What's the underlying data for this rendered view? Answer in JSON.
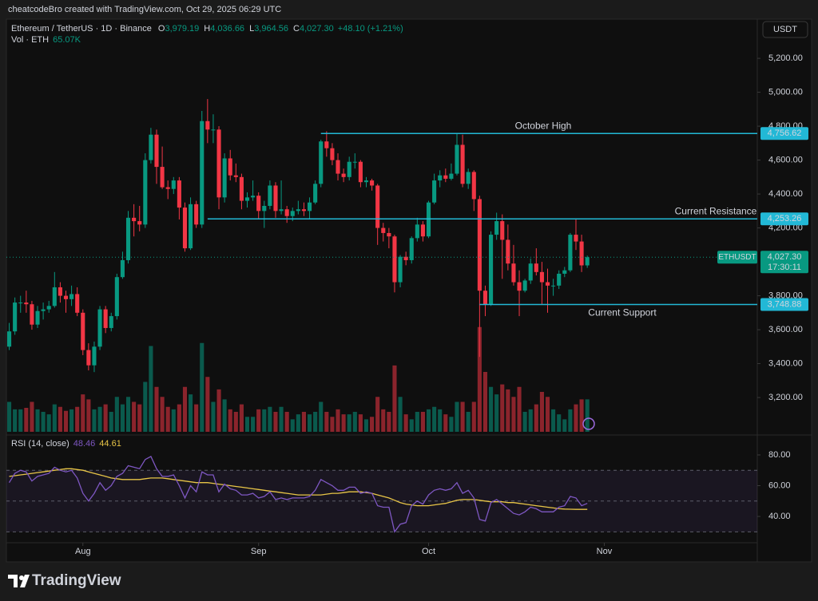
{
  "header": {
    "credit": "cheatcodeBro created with TradingView.com, Oct 29, 2025 06:29 UTC"
  },
  "footer": {
    "brand": "TradingView"
  },
  "chart_data": {
    "type": "candlestick",
    "title": "Ethereum / TetherUS · 1D · Binance",
    "ohlc_names": [
      "O",
      "H",
      "L",
      "C"
    ],
    "ohlc_labels": [
      "3,979.19",
      "4,036.66",
      "3,964.56",
      "4,027.30"
    ],
    "change": "+48.10 (+1.21%)",
    "currency": "USDT",
    "colors": {
      "up": "#089981",
      "down": "#f23645",
      "level": "#22b8d6",
      "rsi": "#7e57c2",
      "rsi_ma": "#e8c547"
    },
    "xlim": [
      -0.5,
      132
    ],
    "xticks": [
      {
        "value": 13,
        "label": "Aug"
      },
      {
        "value": 44,
        "label": "Sep"
      },
      {
        "value": 74,
        "label": "Oct"
      },
      {
        "value": 105,
        "label": "Nov"
      }
    ],
    "ylim": [
      2998,
      5431
    ],
    "yticks": [
      {
        "value": 3200,
        "label": "3,200.00"
      },
      {
        "value": 3400,
        "label": "3,400.00"
      },
      {
        "value": 3600,
        "label": "3,600.00"
      },
      {
        "value": 3800,
        "label": "3,800.00"
      },
      {
        "value": 4200,
        "label": "4,200.00"
      },
      {
        "value": 4400,
        "label": "4,400.00"
      },
      {
        "value": 4600,
        "label": "4,600.00"
      },
      {
        "value": 4800,
        "label": "4,800.00"
      },
      {
        "value": 5000,
        "label": "5,000.00"
      },
      {
        "value": 5200,
        "label": "5,200.00"
      }
    ],
    "candles": [
      [
        3500,
        3640,
        3480,
        3590
      ],
      [
        3590,
        3790,
        3570,
        3760
      ],
      [
        3760,
        3800,
        3700,
        3760
      ],
      [
        3760,
        3830,
        3700,
        3750
      ],
      [
        3750,
        3770,
        3600,
        3630
      ],
      [
        3630,
        3740,
        3610,
        3710
      ],
      [
        3710,
        3760,
        3660,
        3720
      ],
      [
        3720,
        3770,
        3700,
        3740
      ],
      [
        3740,
        3940,
        3730,
        3850
      ],
      [
        3850,
        3880,
        3760,
        3800
      ],
      [
        3800,
        3830,
        3700,
        3780
      ],
      [
        3780,
        3860,
        3740,
        3810
      ],
      [
        3810,
        3850,
        3680,
        3700
      ],
      [
        3700,
        3720,
        3450,
        3480
      ],
      [
        3480,
        3520,
        3360,
        3390
      ],
      [
        3390,
        3530,
        3350,
        3500
      ],
      [
        3500,
        3740,
        3480,
        3720
      ],
      [
        3720,
        3740,
        3580,
        3610
      ],
      [
        3610,
        3700,
        3590,
        3680
      ],
      [
        3680,
        3930,
        3660,
        3910
      ],
      [
        3910,
        4060,
        3900,
        4010
      ],
      [
        4010,
        4300,
        3990,
        4260
      ],
      [
        4260,
        4340,
        4150,
        4240
      ],
      [
        4240,
        4330,
        4180,
        4220
      ],
      [
        4220,
        4640,
        4200,
        4600
      ],
      [
        4600,
        4790,
        4580,
        4750
      ],
      [
        4750,
        4780,
        4460,
        4560
      ],
      [
        4560,
        4680,
        4430,
        4440
      ],
      [
        4440,
        4480,
        4370,
        4430
      ],
      [
        4430,
        4500,
        4400,
        4480
      ],
      [
        4480,
        4500,
        4250,
        4320
      ],
      [
        4320,
        4350,
        4060,
        4080
      ],
      [
        4080,
        4380,
        4070,
        4340
      ],
      [
        4340,
        4360,
        4200,
        4220
      ],
      [
        4220,
        4890,
        4200,
        4830
      ],
      [
        4830,
        4960,
        4700,
        4780
      ],
      [
        4780,
        4870,
        4700,
        4780
      ],
      [
        4780,
        4800,
        4310,
        4380
      ],
      [
        4380,
        4640,
        4350,
        4610
      ],
      [
        4610,
        4660,
        4480,
        4510
      ],
      [
        4510,
        4580,
        4470,
        4500
      ],
      [
        4500,
        4520,
        4310,
        4360
      ],
      [
        4360,
        4410,
        4320,
        4380
      ],
      [
        4380,
        4480,
        4360,
        4390
      ],
      [
        4390,
        4410,
        4250,
        4300
      ],
      [
        4300,
        4360,
        4200,
        4330
      ],
      [
        4330,
        4480,
        4310,
        4450
      ],
      [
        4450,
        4470,
        4260,
        4300
      ],
      [
        4300,
        4480,
        4280,
        4310
      ],
      [
        4310,
        4330,
        4230,
        4270
      ],
      [
        4270,
        4320,
        4240,
        4300
      ],
      [
        4300,
        4360,
        4280,
        4310
      ],
      [
        4310,
        4350,
        4270,
        4300
      ],
      [
        4300,
        4380,
        4250,
        4350
      ],
      [
        4350,
        4480,
        4340,
        4460
      ],
      [
        4460,
        4720,
        4440,
        4710
      ],
      [
        4710,
        4770,
        4620,
        4670
      ],
      [
        4670,
        4700,
        4570,
        4600
      ],
      [
        4600,
        4640,
        4480,
        4520
      ],
      [
        4520,
        4550,
        4470,
        4500
      ],
      [
        4500,
        4620,
        4480,
        4590
      ],
      [
        4590,
        4640,
        4550,
        4590
      ],
      [
        4590,
        4600,
        4440,
        4470
      ],
      [
        4470,
        4500,
        4440,
        4480
      ],
      [
        4480,
        4490,
        4420,
        4450
      ],
      [
        4450,
        4460,
        4100,
        4200
      ],
      [
        4200,
        4230,
        4120,
        4170
      ],
      [
        4170,
        4200,
        4080,
        4150
      ],
      [
        4150,
        4160,
        3820,
        3880
      ],
      [
        3880,
        4040,
        3850,
        4030
      ],
      [
        4030,
        4060,
        3980,
        4010
      ],
      [
        4010,
        4150,
        3990,
        4140
      ],
      [
        4140,
        4260,
        4120,
        4220
      ],
      [
        4220,
        4240,
        4120,
        4150
      ],
      [
        4150,
        4360,
        4140,
        4350
      ],
      [
        4350,
        4520,
        4340,
        4480
      ],
      [
        4480,
        4540,
        4440,
        4510
      ],
      [
        4510,
        4550,
        4470,
        4490
      ],
      [
        4490,
        4580,
        4480,
        4520
      ],
      [
        4520,
        4760,
        4510,
        4690
      ],
      [
        4690,
        4750,
        4440,
        4460
      ],
      [
        4460,
        4550,
        4430,
        4530
      ],
      [
        4530,
        4540,
        4300,
        4370
      ],
      [
        4370,
        4390,
        3440,
        3830
      ],
      [
        3830,
        3860,
        3680,
        3750
      ],
      [
        3750,
        4180,
        3740,
        4160
      ],
      [
        4160,
        4290,
        4130,
        4240
      ],
      [
        4240,
        4280,
        3900,
        4130
      ],
      [
        4130,
        4220,
        3950,
        3990
      ],
      [
        3990,
        4100,
        3860,
        3880
      ],
      [
        3880,
        3950,
        3680,
        3830
      ],
      [
        3830,
        3900,
        3820,
        3890
      ],
      [
        3890,
        4020,
        3870,
        3990
      ],
      [
        3990,
        4080,
        3920,
        3940
      ],
      [
        3940,
        4000,
        3750,
        3880
      ],
      [
        3880,
        3960,
        3700,
        3860
      ],
      [
        3860,
        3900,
        3800,
        3860
      ],
      [
        3860,
        3950,
        3840,
        3930
      ],
      [
        3930,
        3970,
        3910,
        3950
      ],
      [
        3950,
        4170,
        3940,
        4160
      ],
      [
        4160,
        4250,
        4070,
        4120
      ],
      [
        4120,
        4160,
        3940,
        3979.19
      ],
      [
        3979.19,
        4036.66,
        3964.56,
        4027.3
      ]
    ],
    "volume": {
      "name": "Vol · ETH",
      "last_label": "65.07K",
      "lim": [
        0,
        360
      ],
      "values": [
        60,
        45,
        45,
        48,
        60,
        45,
        40,
        35,
        55,
        50,
        42,
        45,
        50,
        75,
        65,
        45,
        50,
        55,
        40,
        70,
        55,
        70,
        60,
        55,
        100,
        172,
        90,
        70,
        50,
        45,
        55,
        90,
        75,
        55,
        178,
        110,
        60,
        85,
        65,
        45,
        40,
        55,
        30,
        30,
        45,
        45,
        50,
        40,
        50,
        40,
        25,
        35,
        40,
        35,
        40,
        60,
        40,
        30,
        45,
        35,
        35,
        40,
        35,
        25,
        30,
        70,
        45,
        40,
        133,
        70,
        35,
        25,
        40,
        40,
        45,
        50,
        45,
        35,
        30,
        60,
        60,
        40,
        60,
        210,
        120,
        90,
        75,
        95,
        85,
        70,
        90,
        40,
        45,
        55,
        80,
        70,
        45,
        35,
        25,
        45,
        55,
        65,
        65.07
      ]
    },
    "levels": [
      {
        "name": "October High",
        "value": 4756.62,
        "label": "4,756.62",
        "from": 55
      },
      {
        "name": "Current Resistance",
        "value": 4253.26,
        "label": "4,253.26",
        "from": 35
      },
      {
        "name": "Current Support",
        "value": 3748.88,
        "label": "3,748.88",
        "from": 83
      }
    ],
    "last": {
      "symbol": "ETHUSDT",
      "value": 4027.3,
      "label": "4,027.30",
      "countdown": "17:30:11"
    },
    "rsi": {
      "name": "RSI (14, close)",
      "lim": [
        22.9,
        91.4
      ],
      "yticks": [
        {
          "value": 40,
          "label": "40.00"
        },
        {
          "value": 60,
          "label": "60.00"
        },
        {
          "value": 80,
          "label": "80.00"
        }
      ],
      "bands": [
        70,
        50,
        30
      ],
      "values": [
        62,
        68,
        70,
        69,
        63,
        66,
        67,
        68,
        72,
        70,
        69,
        70,
        65,
        55,
        50,
        55,
        62,
        57,
        60,
        66,
        68,
        73,
        72,
        71,
        77,
        79,
        71,
        66,
        66,
        67,
        60,
        52,
        60,
        56,
        69,
        67,
        67,
        56,
        61,
        58,
        57,
        54,
        54,
        55,
        52,
        53,
        56,
        51,
        52,
        51,
        52,
        52,
        52,
        53,
        57,
        64,
        62,
        60,
        57,
        57,
        59,
        59,
        55,
        56,
        55,
        47,
        46,
        46,
        30,
        35,
        36,
        47,
        50,
        48,
        54,
        57,
        58,
        57,
        58,
        62,
        55,
        57,
        52,
        38,
        37,
        49,
        51,
        48,
        45,
        42,
        41,
        43,
        46,
        45,
        43,
        43,
        43,
        46,
        47,
        53,
        52,
        47,
        48.46
      ],
      "ma": [
        66,
        66.5,
        67,
        67.5,
        68,
        68.5,
        69,
        69.5,
        70,
        70.5,
        71,
        71,
        70.5,
        70,
        69,
        68,
        67,
        66,
        65,
        64.5,
        64,
        64,
        64,
        64,
        64.5,
        65,
        65,
        65,
        64.5,
        64,
        63.5,
        63,
        62.5,
        62,
        62,
        62,
        61.5,
        61,
        60.5,
        60,
        59.5,
        59,
        58.5,
        58,
        57.5,
        57,
        56.5,
        56,
        55.5,
        55,
        54.5,
        54,
        54,
        54,
        54,
        54,
        54.5,
        55,
        55,
        55.5,
        56,
        56,
        56,
        55.5,
        55,
        54,
        53,
        52,
        50.5,
        49,
        48,
        47.5,
        47,
        47,
        47,
        47.5,
        48,
        48.5,
        49.5,
        50.5,
        51,
        51,
        51,
        50.5,
        50,
        49.5,
        49.5,
        49.5,
        49,
        49,
        48.5,
        48,
        47.5,
        47,
        46.5,
        46,
        45.5,
        45,
        44.8,
        44.7,
        44.6,
        44.6,
        44.61
      ]
    }
  }
}
